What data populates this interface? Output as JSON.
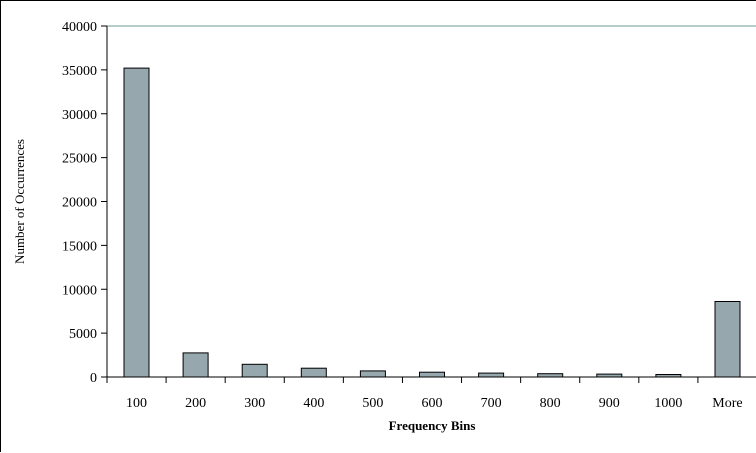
{
  "chart_data": {
    "type": "bar",
    "title": "",
    "xlabel": "Frequency Bins",
    "ylabel": "Number of Occurrences",
    "categories": [
      "100",
      "200",
      "300",
      "400",
      "500",
      "600",
      "700",
      "800",
      "900",
      "1000",
      "More"
    ],
    "values": [
      35200,
      2750,
      1450,
      1000,
      700,
      550,
      450,
      380,
      330,
      280,
      8600
    ],
    "ylim": [
      0,
      40000
    ],
    "yticks": [
      0,
      5000,
      10000,
      15000,
      20000,
      25000,
      30000,
      35000,
      40000
    ],
    "grid": false,
    "legend": "none",
    "colors": {
      "bar_fill": "#96a8ae",
      "bar_stroke": "#000000",
      "top_line": "#6d9a95"
    }
  }
}
